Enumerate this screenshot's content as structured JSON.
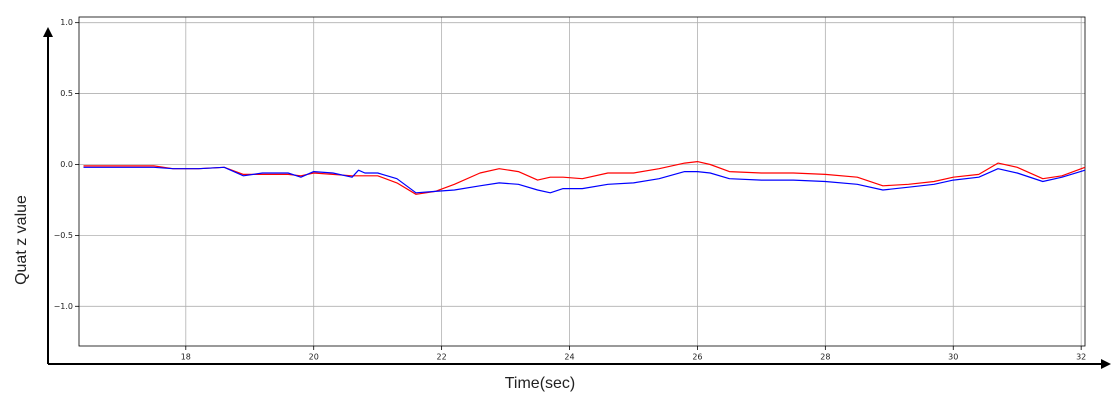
{
  "chart_data": {
    "type": "line",
    "x_label": "Time(sec)",
    "y_label": "Quat z value",
    "x": [
      16.4,
      17.0,
      17.5,
      17.8,
      18.2,
      18.6,
      18.9,
      19.2,
      19.6,
      19.8,
      20.0,
      20.3,
      20.6,
      20.7,
      20.8,
      21.0,
      21.3,
      21.6,
      21.9,
      22.2,
      22.6,
      22.9,
      23.2,
      23.5,
      23.7,
      23.9,
      24.2,
      24.6,
      25.0,
      25.4,
      25.8,
      26.0,
      26.2,
      26.5,
      27.0,
      27.5,
      28.0,
      28.5,
      28.9,
      29.3,
      29.7,
      30.0,
      30.4,
      30.7,
      31.0,
      31.4,
      31.7,
      32.06
    ],
    "series": [
      {
        "color": "#ff0000",
        "values": [
          -0.01,
          -0.01,
          -0.01,
          -0.03,
          -0.03,
          -0.02,
          -0.07,
          -0.07,
          -0.07,
          -0.08,
          -0.06,
          -0.07,
          -0.08,
          -0.08,
          -0.08,
          -0.08,
          -0.13,
          -0.21,
          -0.19,
          -0.14,
          -0.06,
          -0.03,
          -0.05,
          -0.11,
          -0.09,
          -0.09,
          -0.1,
          -0.06,
          -0.06,
          -0.03,
          0.01,
          0.02,
          0.0,
          -0.05,
          -0.06,
          -0.06,
          -0.07,
          -0.09,
          -0.15,
          -0.14,
          -0.12,
          -0.09,
          -0.07,
          0.01,
          -0.02,
          -0.1,
          -0.08,
          -0.02
        ]
      },
      {
        "color": "#0000ff",
        "values": [
          -0.02,
          -0.02,
          -0.02,
          -0.03,
          -0.03,
          -0.02,
          -0.08,
          -0.06,
          -0.06,
          -0.09,
          -0.05,
          -0.06,
          -0.09,
          -0.04,
          -0.06,
          -0.06,
          -0.1,
          -0.2,
          -0.19,
          -0.18,
          -0.15,
          -0.13,
          -0.14,
          -0.18,
          -0.2,
          -0.17,
          -0.17,
          -0.14,
          -0.13,
          -0.1,
          -0.05,
          -0.05,
          -0.06,
          -0.1,
          -0.11,
          -0.11,
          -0.12,
          -0.14,
          -0.18,
          -0.16,
          -0.14,
          -0.11,
          -0.09,
          -0.03,
          -0.06,
          -0.12,
          -0.09,
          -0.04
        ]
      }
    ],
    "xlim": [
      16.33,
      32.06
    ],
    "ylim": [
      -1.28,
      1.04
    ],
    "xticks": [
      18,
      20,
      22,
      24,
      26,
      28,
      30,
      32
    ],
    "yticks": [
      {
        "value": -1.0,
        "label": "−1.0"
      },
      {
        "value": -0.5,
        "label": "−0.5"
      },
      {
        "value": 0.0,
        "label": "0.0"
      },
      {
        "value": 0.5,
        "label": "0.5"
      },
      {
        "value": 1.0,
        "label": "1.0"
      }
    ],
    "grid": true
  }
}
